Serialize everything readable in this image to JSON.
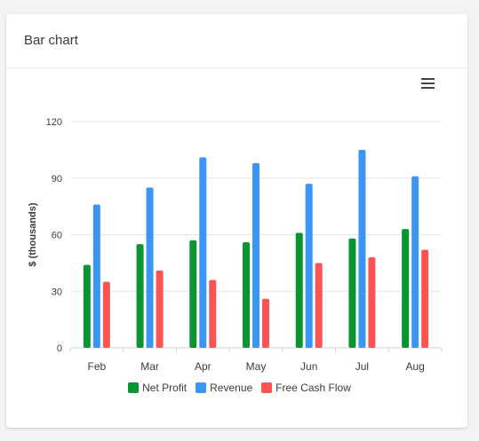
{
  "card": {
    "title": "Bar chart"
  },
  "toolbar": {
    "menu_icon": "hamburger-menu-icon"
  },
  "chart_data": {
    "type": "bar",
    "title": "",
    "xlabel": "",
    "ylabel": "$ (thousands)",
    "ylim": [
      0,
      120
    ],
    "yticks": [
      0,
      30,
      60,
      90,
      120
    ],
    "categories": [
      "Feb",
      "Mar",
      "Apr",
      "May",
      "Jun",
      "Jul",
      "Aug"
    ],
    "series": [
      {
        "name": "Net Profit",
        "color": "#0a9432",
        "values": [
          44,
          55,
          57,
          56,
          61,
          58,
          63
        ]
      },
      {
        "name": "Revenue",
        "color": "#3a95f5",
        "values": [
          76,
          85,
          101,
          98,
          87,
          105,
          91
        ]
      },
      {
        "name": "Free Cash Flow",
        "color": "#fc5353",
        "values": [
          35,
          41,
          36,
          26,
          45,
          48,
          52
        ]
      }
    ],
    "grid": true,
    "legend_position": "bottom"
  }
}
